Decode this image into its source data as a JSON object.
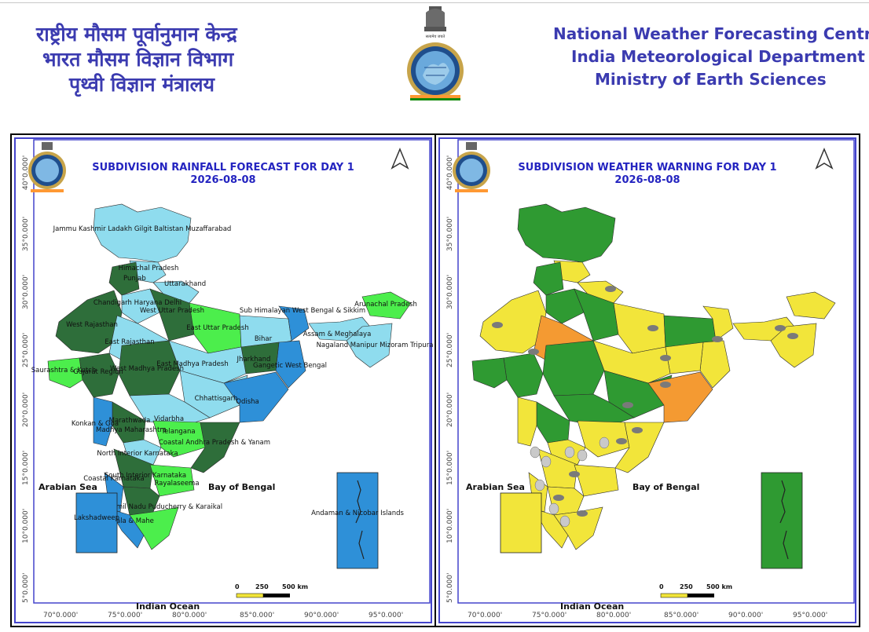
{
  "header": {
    "hindi_lines": [
      "राष्ट्रीय मौसम पूर्वानुमान केन्द्र",
      "भारत मौसम विज्ञान विभाग",
      "पृथ्वी विज्ञान मंत्रालय"
    ],
    "english_lines": [
      "National Weather Forecasting Centre",
      "India Meteorological Department",
      "Ministry of Earth Sciences"
    ],
    "emblem_icon": "imd-emblem-icon"
  },
  "axes": {
    "longitude_ticks": [
      "70°0.000'",
      "75°0.000'",
      "80°0.000'",
      "85°0.000'",
      "90°0.000'",
      "95°0.000'"
    ],
    "latitude_ticks": [
      "40°0.000'",
      "35°0.000'",
      "30°0.000'",
      "25°0.000'",
      "20°0.000'",
      "15°0.000'",
      "10°0.000'",
      "5°0.000'"
    ]
  },
  "scale_bar": {
    "labels": [
      "0",
      "250",
      "500 km"
    ]
  },
  "sea_labels": {
    "arabian_sea": "Arabian Sea",
    "bay_of_bengal": "Bay of Bengal",
    "indian_ocean": "Indian Ocean"
  },
  "left_map": {
    "title": "SUBDIVISION RAINFALL FORECAST FOR DAY 1",
    "date": "2026-08-08",
    "inset_lakshadweep": "Lakshadweep",
    "inset_andaman": "Andaman & Nicobar Islands",
    "colors": {
      "light_blue": "#8fdcee",
      "blue": "#2e90d8",
      "light_green": "#4cee4c",
      "dark_green": "#2e6e3a"
    },
    "regions": [
      "Jammu Kashmir Ladakh Gilgit Baltistan Muzaffarabad",
      "Himachal Pradesh",
      "Punjab",
      "Uttarakhand",
      "Chandigarh Haryana Delhi",
      "West Uttar Pradesh",
      "East Uttar Pradesh",
      "West Rajasthan",
      "East Rajasthan",
      "Bihar",
      "Sub Himalayan West Bengal & Sikkim",
      "Arunachal Pradesh",
      "Assam & Meghalaya",
      "Nagaland Manipur Mizoram Tripura",
      "Gangetic West Bengal",
      "Jharkhand",
      "West Madhya Pradesh",
      "East Madhya Pradesh",
      "Gujarat Region",
      "Saurashtra & Kutch",
      "Chhattisgarh",
      "Odisha",
      "Vidarbha",
      "Marathwada",
      "Madhya Maharashtra",
      "Konkan & Goa",
      "Telangana",
      "Coastal Andhra Pradesh & Yanam",
      "North Interior Karnataka",
      "South Interior Karnataka",
      "Coastal Karnataka",
      "Rayalaseema",
      "Tamil Nadu Puducherry & Karaikal",
      "Kerala & Mahe"
    ]
  },
  "right_map": {
    "title": "SUBDIVISION WEATHER WARNING FOR DAY 1",
    "date": "2026-08-08",
    "colors": {
      "green": "#2f9a32",
      "yellow": "#f2e53a",
      "orange": "#f49a32"
    },
    "icons": [
      "thunderstorm-icon",
      "gusty-wind-icon"
    ]
  }
}
